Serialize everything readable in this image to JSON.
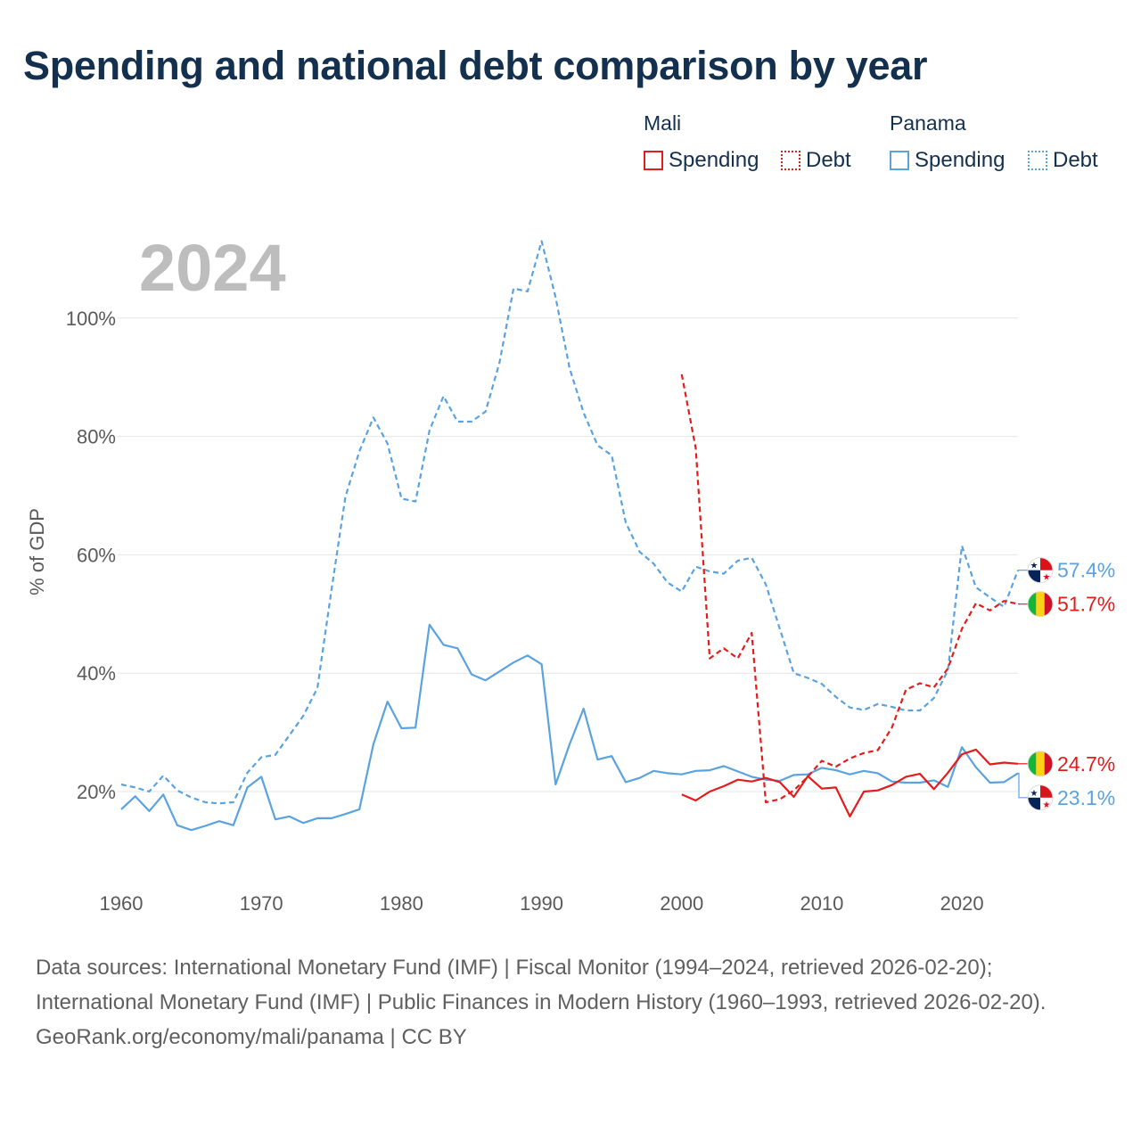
{
  "title": "Spending and national debt comparison by year",
  "legend": {
    "group_mali": "Mali",
    "group_panama": "Panama",
    "mali_spending": "Spending",
    "mali_debt": "Debt",
    "panama_spending": "Spending",
    "panama_debt": "Debt"
  },
  "year": "2024",
  "colors": {
    "mali": "#e31c1c",
    "panama": "#5aa2e0",
    "grid": "#e6e6e6",
    "axis_text": "#5a5a5a"
  },
  "footer": {
    "sources": "Data sources: International Monetary Fund (IMF) | Fiscal Monitor (1994–2024, retrieved 2026-02-20); International Monetary Fund (IMF) | Public Finances in Modern History (1960–1993, retrieved 2026-02-20).",
    "credit": "GeoRank.org/economy/mali/panama | CC BY"
  },
  "chart_data": {
    "type": "line",
    "title": "Spending and national debt comparison by year",
    "ylabel": "% of GDP",
    "xlabel": "",
    "xlim": [
      1960,
      2024
    ],
    "ylim": [
      6,
      115
    ],
    "x_ticks": [
      "1960",
      "1970",
      "1980",
      "1990",
      "2000",
      "2010",
      "2020"
    ],
    "y_ticks": [
      {
        "value": 20,
        "label": "20%"
      },
      {
        "value": 40,
        "label": "40%"
      },
      {
        "value": 60,
        "label": "60%"
      },
      {
        "value": 80,
        "label": "80%"
      },
      {
        "value": 100,
        "label": "100%"
      }
    ],
    "series": [
      {
        "name": "Panama Debt",
        "country": "Panama",
        "style": "dashed",
        "color": "#5aa2e0",
        "x": [
          1960,
          1961,
          1962,
          1963,
          1964,
          1965,
          1966,
          1967,
          1968,
          1969,
          1970,
          1971,
          1972,
          1973,
          1974,
          1975,
          1976,
          1977,
          1978,
          1979,
          1980,
          1981,
          1982,
          1983,
          1984,
          1985,
          1986,
          1987,
          1988,
          1989,
          1990,
          1991,
          1992,
          1993,
          1994,
          1995,
          1996,
          1997,
          1998,
          1999,
          2000,
          2001,
          2002,
          2003,
          2004,
          2005,
          2006,
          2007,
          2008,
          2009,
          2010,
          2011,
          2012,
          2013,
          2014,
          2015,
          2016,
          2017,
          2018,
          2019,
          2020,
          2021,
          2022,
          2023,
          2024
        ],
        "values": [
          21.2,
          20.7,
          20,
          22.7,
          20.2,
          19,
          18.2,
          18,
          18.2,
          23.2,
          25.8,
          26.2,
          29.5,
          32.8,
          37.5,
          54,
          69.8,
          77.5,
          83.2,
          78.8,
          69.5,
          69,
          81,
          86.8,
          82.5,
          82.5,
          84.2,
          92.5,
          105,
          104.5,
          113,
          103.5,
          91.5,
          84,
          78.5,
          76.8,
          65.5,
          60.5,
          58.5,
          55.3,
          53.8,
          58,
          57.2,
          56.8,
          59,
          59.5,
          55,
          47.5,
          40,
          39.2,
          38.2,
          36,
          34.2,
          33.8,
          34.8,
          34.3,
          33.7,
          33.7,
          35.8,
          40.5,
          61.5,
          54.5,
          52.8,
          51.2,
          57.4
        ],
        "end_label": "57.4%"
      },
      {
        "name": "Panama Spending",
        "country": "Panama",
        "style": "solid",
        "color": "#5aa2e0",
        "x": [
          1960,
          1961,
          1962,
          1963,
          1964,
          1965,
          1966,
          1967,
          1968,
          1969,
          1970,
          1971,
          1972,
          1973,
          1974,
          1975,
          1976,
          1977,
          1978,
          1979,
          1980,
          1981,
          1982,
          1983,
          1984,
          1985,
          1986,
          1987,
          1988,
          1989,
          1990,
          1991,
          1992,
          1993,
          1994,
          1995,
          1996,
          1997,
          1998,
          1999,
          2000,
          2001,
          2002,
          2003,
          2004,
          2005,
          2006,
          2007,
          2008,
          2009,
          2010,
          2011,
          2012,
          2013,
          2014,
          2015,
          2016,
          2017,
          2018,
          2019,
          2020,
          2021,
          2022,
          2023,
          2024
        ],
        "values": [
          17,
          19.2,
          16.7,
          19.5,
          14.3,
          13.5,
          14.2,
          15,
          14.3,
          20.7,
          22.5,
          15.3,
          15.8,
          14.7,
          15.5,
          15.5,
          16.2,
          17,
          28,
          35.2,
          30.7,
          30.8,
          48.2,
          44.8,
          44.2,
          39.8,
          38.8,
          40.3,
          41.8,
          43,
          41.5,
          21.2,
          28,
          34,
          25.4,
          26,
          21.6,
          22.3,
          23.5,
          23.1,
          22.9,
          23.5,
          23.6,
          24.3,
          23.4,
          22.5,
          22,
          21.8,
          22.8,
          22.9,
          24,
          23.6,
          22.9,
          23.5,
          23.1,
          21.7,
          21.5,
          21.5,
          21.9,
          20.8,
          27.5,
          24.1,
          21.5,
          21.6,
          23.1
        ],
        "end_label": "23.1%"
      },
      {
        "name": "Mali Debt",
        "country": "Mali",
        "style": "dashed",
        "color": "#e31c1c",
        "x": [
          2000,
          2001,
          2002,
          2003,
          2004,
          2005,
          2006,
          2007,
          2008,
          2009,
          2010,
          2011,
          2012,
          2013,
          2014,
          2015,
          2016,
          2017,
          2018,
          2019,
          2020,
          2021,
          2022,
          2023,
          2024
        ],
        "values": [
          90.5,
          78,
          42.5,
          44.2,
          42.5,
          46.8,
          18.2,
          18.7,
          20.2,
          22.5,
          25.2,
          24.2,
          25.6,
          26.5,
          27,
          30.8,
          37.2,
          38.3,
          37.6,
          40.8,
          47.5,
          51.8,
          50.6,
          52.2,
          51.7
        ],
        "end_label": "51.7%"
      },
      {
        "name": "Mali Spending",
        "country": "Mali",
        "style": "solid",
        "color": "#e31c1c",
        "x": [
          2000,
          2001,
          2002,
          2003,
          2004,
          2005,
          2006,
          2007,
          2008,
          2009,
          2010,
          2011,
          2012,
          2013,
          2014,
          2015,
          2016,
          2017,
          2018,
          2019,
          2020,
          2021,
          2022,
          2023,
          2024
        ],
        "values": [
          19.5,
          18.5,
          20,
          20.9,
          22,
          21.7,
          22.3,
          21.6,
          19.1,
          22.6,
          20.5,
          20.7,
          15.8,
          20,
          20.2,
          21.1,
          22.5,
          23,
          20.4,
          23.2,
          26.3,
          27.1,
          24.6,
          24.9,
          24.7
        ],
        "end_label": "24.7%"
      }
    ],
    "legend": "top-right"
  }
}
